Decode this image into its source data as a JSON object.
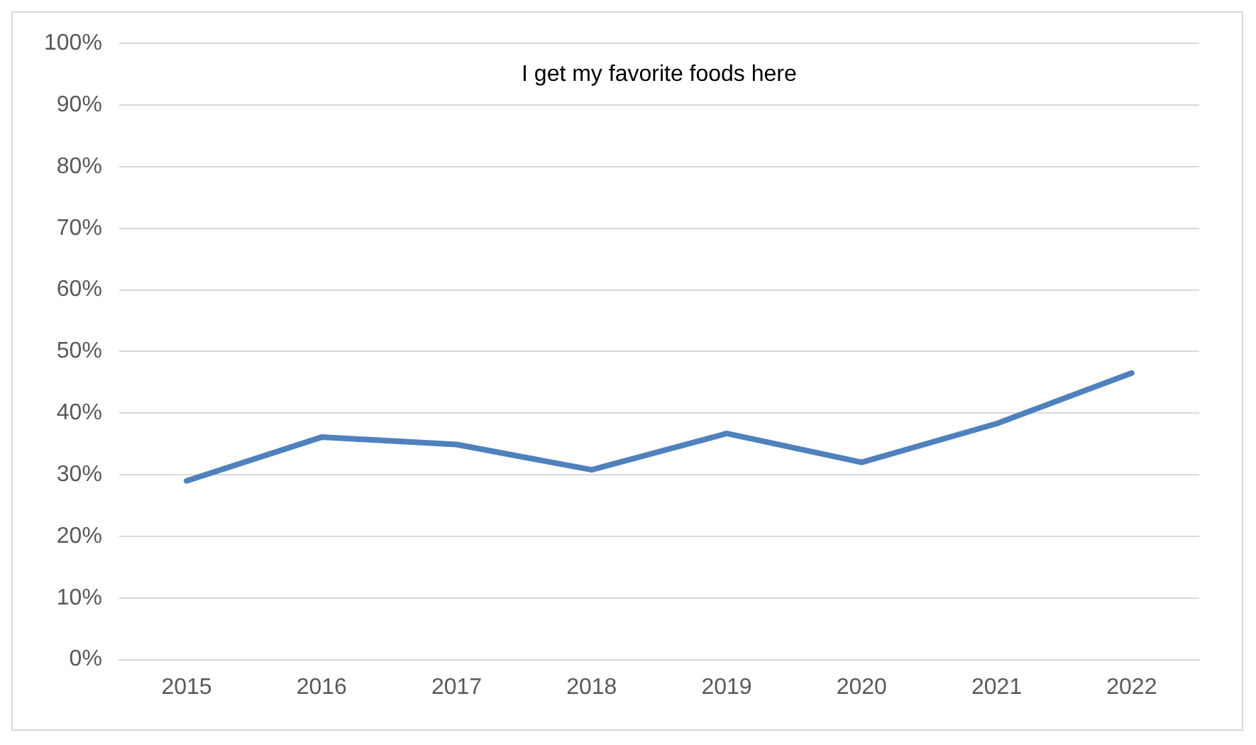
{
  "chart_data": {
    "type": "line",
    "title": "I get my favorite foods here",
    "categories": [
      "2015",
      "2016",
      "2017",
      "2018",
      "2019",
      "2020",
      "2021",
      "2022"
    ],
    "series": [
      {
        "color": "#4f81bd",
        "values": [
          29,
          36.1,
          34.9,
          30.8,
          36.7,
          32,
          38.3,
          46.5
        ]
      }
    ],
    "ylim": [
      0,
      100
    ],
    "yticks": [
      {
        "value": 0,
        "label": "0%"
      },
      {
        "value": 10,
        "label": "10%"
      },
      {
        "value": 20,
        "label": "20%"
      },
      {
        "value": 30,
        "label": "30%"
      },
      {
        "value": 40,
        "label": "40%"
      },
      {
        "value": 50,
        "label": "50%"
      },
      {
        "value": 60,
        "label": "60%"
      },
      {
        "value": 70,
        "label": "70%"
      },
      {
        "value": 80,
        "label": "80%"
      },
      {
        "value": 90,
        "label": "90%"
      },
      {
        "value": 100,
        "label": "100%"
      }
    ],
    "grid": "y",
    "legend": false,
    "marker": "none",
    "line_style": "solid"
  }
}
